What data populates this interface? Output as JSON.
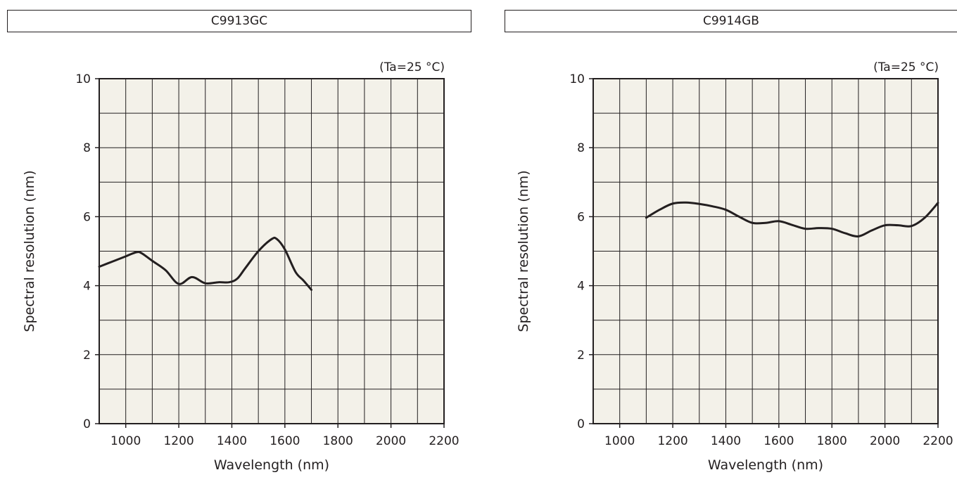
{
  "chart_data": [
    {
      "type": "line",
      "title": "C9913GC",
      "condition": "(Ta=25 °C)",
      "xlabel": "Wavelength (nm)",
      "ylabel": "Spectral resolution (nm)",
      "xlim": [
        900,
        2200
      ],
      "ylim": [
        0,
        10
      ],
      "xticks": [
        1000,
        1200,
        1400,
        1600,
        1800,
        2000,
        2200
      ],
      "yticks": [
        0,
        2,
        4,
        6,
        8,
        10
      ],
      "grid": true,
      "background": "#f3f1e9",
      "line_color": "#231f20",
      "series": [
        {
          "x": [
            900,
            950,
            1000,
            1040,
            1060,
            1100,
            1150,
            1200,
            1250,
            1300,
            1350,
            1390,
            1420,
            1450,
            1500,
            1550,
            1570,
            1600,
            1640,
            1670,
            1700
          ],
          "y": [
            4.55,
            4.7,
            4.85,
            4.97,
            4.94,
            4.72,
            4.45,
            4.05,
            4.25,
            4.07,
            4.1,
            4.1,
            4.2,
            4.5,
            5.0,
            5.35,
            5.35,
            5.05,
            4.4,
            4.15,
            3.88
          ]
        }
      ]
    },
    {
      "type": "line",
      "title": "C9914GB",
      "condition": "(Ta=25 °C)",
      "xlabel": "Wavelength (nm)",
      "ylabel": "Spectral resolution (nm)",
      "xlim": [
        900,
        2200
      ],
      "ylim": [
        0,
        10
      ],
      "xticks": [
        1000,
        1200,
        1400,
        1600,
        1800,
        2000,
        2200
      ],
      "yticks": [
        0,
        2,
        4,
        6,
        8,
        10
      ],
      "grid": true,
      "background": "#f3f1e9",
      "line_color": "#231f20",
      "series": [
        {
          "x": [
            1100,
            1150,
            1200,
            1250,
            1300,
            1350,
            1400,
            1450,
            1500,
            1550,
            1600,
            1650,
            1700,
            1750,
            1800,
            1850,
            1900,
            1950,
            2000,
            2050,
            2100,
            2150,
            2200
          ],
          "y": [
            5.97,
            6.2,
            6.38,
            6.41,
            6.37,
            6.3,
            6.2,
            6.0,
            5.82,
            5.82,
            5.87,
            5.76,
            5.65,
            5.67,
            5.65,
            5.52,
            5.43,
            5.6,
            5.75,
            5.75,
            5.73,
            5.97,
            6.4
          ]
        }
      ]
    }
  ]
}
